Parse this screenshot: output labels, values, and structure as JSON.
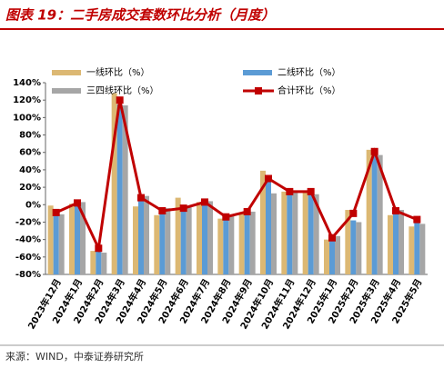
{
  "chart_data": {
    "type": "combo",
    "title": "图表 19：二手房成交套数环比分析（月度）",
    "source": "来源：WIND，中泰证券研究所",
    "categories": [
      "2023年12月",
      "2024年1月",
      "2024年2月",
      "2024年3月",
      "2024年4月",
      "2024年5月",
      "2024年6月",
      "2024年7月",
      "2024年8月",
      "2024年9月",
      "2024年10月",
      "2024年11月",
      "2024年12月",
      "2025年1月",
      "2025年2月",
      "2025年3月",
      "2025年4月",
      "2025年5月"
    ],
    "series": [
      {
        "name": "一线环比（%）",
        "type": "bar",
        "color": "#dcb873",
        "values": [
          -1,
          1,
          -53,
          128,
          -2,
          -12,
          8,
          3,
          -16,
          -10,
          39,
          15,
          14,
          -40,
          -6,
          63,
          -12,
          -25
        ]
      },
      {
        "name": "二线环比（%）",
        "type": "bar",
        "color": "#5b9bd5",
        "values": [
          -13,
          2,
          -50,
          115,
          8,
          -8,
          -6,
          3,
          -15,
          -6,
          30,
          14,
          18,
          -40,
          -18,
          60,
          -8,
          -20
        ]
      },
      {
        "name": "三四线环比（%）",
        "type": "bar",
        "color": "#a6a6a6",
        "values": [
          -11,
          3,
          -55,
          114,
          10,
          -4,
          -3,
          4,
          -12,
          -8,
          13,
          15,
          12,
          -36,
          -20,
          57,
          -6,
          -22
        ]
      },
      {
        "name": "合计环比（%）",
        "type": "line",
        "color": "#c00000",
        "values": [
          -9,
          2,
          -50,
          120,
          8,
          -7,
          -4,
          3,
          -14,
          -8,
          30,
          15,
          15,
          -38,
          -10,
          61,
          -7,
          -17
        ]
      }
    ],
    "ylim": [
      -80,
      140
    ],
    "yticks": [
      {
        "value": -80,
        "label": "-80%"
      },
      {
        "value": -60,
        "label": "-60%"
      },
      {
        "value": -40,
        "label": "-40%"
      },
      {
        "value": -20,
        "label": "-20%"
      },
      {
        "value": 0,
        "label": "0%"
      },
      {
        "value": 20,
        "label": "20%"
      },
      {
        "value": 40,
        "label": "40%"
      },
      {
        "value": 60,
        "label": "60%"
      },
      {
        "value": 80,
        "label": "80%"
      },
      {
        "value": 100,
        "label": "100%"
      },
      {
        "value": 120,
        "label": "120%"
      },
      {
        "value": 140,
        "label": "140%"
      }
    ],
    "grid": false,
    "legend": "top"
  }
}
